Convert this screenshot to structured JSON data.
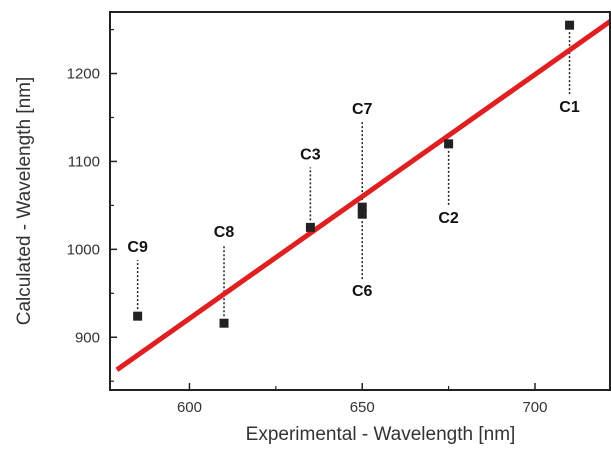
{
  "chart_data": {
    "type": "scatter",
    "title": "",
    "xlabel": "Experimental - Wavelength [nm]",
    "ylabel": "Calculated - Wavelength [nm]",
    "xlim": [
      577,
      722
    ],
    "ylim": [
      840,
      1270
    ],
    "x_ticks": [
      600,
      650,
      700
    ],
    "y_ticks": [
      900,
      1000,
      1100,
      1200
    ],
    "grid": false,
    "legend": "none",
    "colors": {
      "fit_line": "#e02020",
      "points": "#222222",
      "axes": "#222222"
    },
    "points": [
      {
        "label": "C1",
        "x": 710,
        "y": 1255,
        "label_side": "below"
      },
      {
        "label": "C2",
        "x": 675,
        "y": 1120,
        "label_side": "below"
      },
      {
        "label": "C3",
        "x": 635,
        "y": 1025,
        "label_side": "above"
      },
      {
        "label": "C6",
        "x": 650,
        "y": 1040,
        "label_side": "below"
      },
      {
        "label": "C7",
        "x": 650,
        "y": 1048,
        "label_side": "above"
      },
      {
        "label": "C8",
        "x": 610,
        "y": 916,
        "label_side": "above"
      },
      {
        "label": "C9",
        "x": 585,
        "y": 924,
        "label_side": "above"
      }
    ],
    "fit_line": {
      "x": [
        579,
        722
      ],
      "y": [
        863,
        1260
      ]
    }
  }
}
